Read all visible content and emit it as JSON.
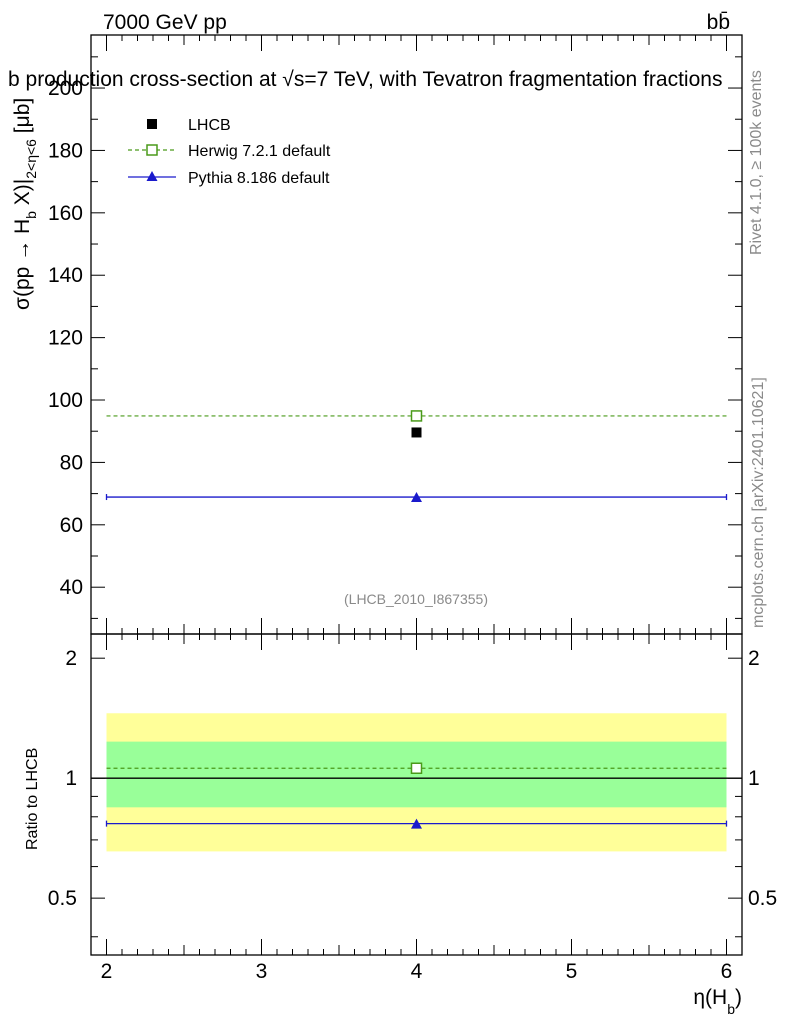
{
  "header": {
    "energy": "7000 GeV pp",
    "process": "bb̄",
    "title_text": "b production cross-section at √s=7 TeV, with Tevatron fragmentation fractions",
    "rivet": "Rivet 4.1.0, ≥ 100k events",
    "mcplots": "mcplots.cern.ch [arXiv:2401.10621]",
    "analysis_id": "(LHCB_2010_I867355)"
  },
  "chart_data": {
    "type": "scatter",
    "title": "b production cross-section at √s=7 TeV, with Tevatron fragmentation fractions",
    "ylabel": "σ(pp → H_b X)|_{2<η<6} [μb]",
    "ylabel_parts": {
      "main": "σ(pp → H",
      "sub1": "b",
      "tail": " X)|",
      "sub2": "2<η<6",
      "unit": " [μb]"
    },
    "xlabel": "η(H_b)",
    "xlabel_parts": {
      "main": "η(H",
      "sub": "b",
      "tail": ")"
    },
    "ratio_ylabel": "Ratio to LHCB",
    "xlim": [
      1.9,
      6.1
    ],
    "ylim": [
      25,
      217
    ],
    "ratio_ylim": [
      0.36,
      2.3
    ],
    "x_ticks": [
      "2",
      "3",
      "4",
      "5",
      "6"
    ],
    "y_ticks": [
      "40",
      "60",
      "80",
      "100",
      "120",
      "140",
      "160",
      "180",
      "200"
    ],
    "ratio_ticks": [
      "0.5",
      "1",
      "2"
    ],
    "bin": [
      2,
      6
    ],
    "series": [
      {
        "name": "LHCB",
        "x": 4,
        "y": 89.6,
        "ratio": 1.0,
        "marker": "square-filled",
        "color": "#000000",
        "band_inner": [
          0.845,
          1.235
        ],
        "band_outer": [
          0.655,
          1.455
        ]
      },
      {
        "name": "Herwig 7.2.1 default",
        "x": 4,
        "y": 94.9,
        "ratio": 1.059,
        "marker": "square-open",
        "color": "#4a9a1a",
        "line": "dashed"
      },
      {
        "name": "Pythia 8.186 default",
        "x": 4,
        "y": 68.9,
        "ratio": 0.769,
        "marker": "triangle",
        "color": "#1a1acc",
        "line": "solid"
      }
    ]
  }
}
